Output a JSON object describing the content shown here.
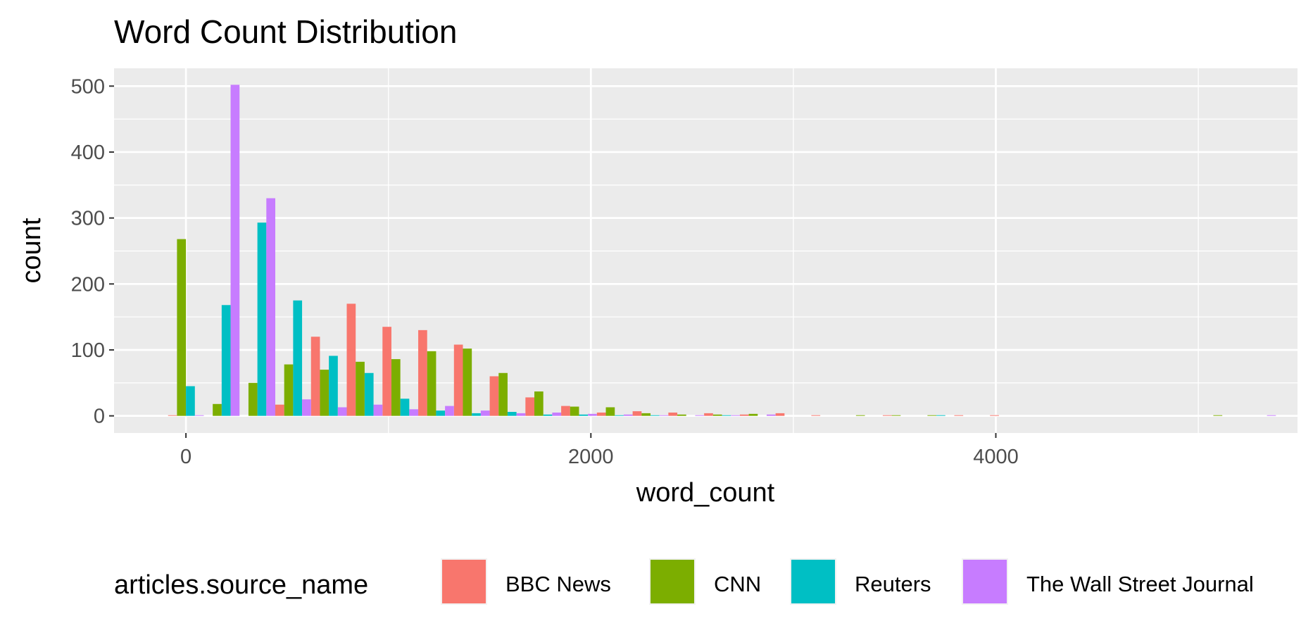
{
  "chart_data": {
    "type": "bar",
    "title": "Word Count Distribution",
    "xlabel": "word_count",
    "ylabel": "count",
    "xlim": [
      -355,
      5490
    ],
    "ylim": [
      -26,
      527
    ],
    "x_ticks": [
      {
        "value": 0,
        "label": "0"
      },
      {
        "value": 2000,
        "label": "2000"
      },
      {
        "value": 4000,
        "label": "4000"
      }
    ],
    "y_ticks": [
      {
        "value": 0,
        "label": "0"
      },
      {
        "value": 100,
        "label": "100"
      },
      {
        "value": 200,
        "label": "200"
      },
      {
        "value": 300,
        "label": "300"
      },
      {
        "value": 400,
        "label": "400"
      },
      {
        "value": 500,
        "label": "500"
      }
    ],
    "bin_width": 176.5,
    "bin_centers": [
      0,
      176.5,
      353,
      529.5,
      706,
      882.5,
      1059,
      1235.5,
      1412,
      1588.5,
      1765,
      1941.5,
      2118,
      2294.5,
      2471,
      2647.5,
      2824,
      3000.5,
      3177,
      3353.5,
      3530,
      3706.5,
      3883,
      4059.5,
      4236,
      4412.5,
      4589,
      4765.5,
      4942,
      5118.5,
      5295
    ],
    "grid": true,
    "legend": {
      "title": "articles.source_name",
      "position": "bottom"
    },
    "series": [
      {
        "name": "BBC News",
        "color": "#F8766D",
        "values": [
          1,
          0,
          0,
          17,
          120,
          170,
          135,
          130,
          108,
          60,
          28,
          15,
          5,
          7,
          5,
          4,
          2,
          4,
          1,
          0,
          1,
          0,
          1,
          1,
          0,
          0,
          0,
          0,
          0,
          0,
          0
        ]
      },
      {
        "name": "CNN",
        "color": "#7CAE00",
        "values": [
          268,
          18,
          50,
          78,
          70,
          82,
          86,
          98,
          102,
          65,
          37,
          14,
          13,
          4,
          2,
          2,
          3,
          0,
          0,
          1,
          1,
          1,
          0,
          0,
          0,
          0,
          0,
          0,
          0,
          1,
          0
        ]
      },
      {
        "name": "Reuters",
        "color": "#00BFC4",
        "values": [
          45,
          168,
          293,
          175,
          91,
          65,
          26,
          8,
          4,
          6,
          2,
          2,
          1,
          1,
          0,
          1,
          0,
          0,
          0,
          0,
          0,
          1,
          0,
          0,
          0,
          0,
          0,
          0,
          0,
          0,
          0
        ]
      },
      {
        "name": "The Wall Street Journal",
        "color": "#C77CFF",
        "values": [
          1,
          502,
          330,
          25,
          13,
          17,
          10,
          15,
          8,
          4,
          5,
          3,
          2,
          1,
          1,
          1,
          2,
          0,
          0,
          0,
          0,
          0,
          0,
          0,
          0,
          0,
          0,
          0,
          0,
          0,
          1
        ]
      }
    ]
  }
}
